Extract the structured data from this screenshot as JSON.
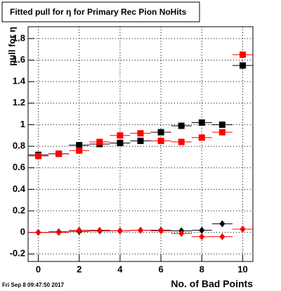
{
  "chart_data": {
    "type": "scatter",
    "title": "Fitted pull for  η for Primary Rec Pion NoHits",
    "x_label": "No. of Bad Points",
    "y_label": "pull for  η",
    "footer": "Fri Sep  8 09:47:50 2017",
    "x": [
      0,
      1,
      2,
      3,
      4,
      5,
      6,
      7,
      8,
      9,
      10
    ],
    "xlim": [
      -0.5,
      10.5
    ],
    "xticks": [
      0,
      2,
      4,
      6,
      8,
      10
    ],
    "ylim": [
      -0.27,
      1.91
    ],
    "yticks": [
      -0.2,
      0,
      0.2,
      0.4,
      0.6,
      0.8,
      1,
      1.2,
      1.4,
      1.6,
      1.8
    ],
    "grid": true,
    "series": [
      {
        "color": "#000000",
        "marker": "square",
        "values": [
          0.72,
          0.73,
          0.81,
          0.82,
          0.83,
          0.85,
          0.93,
          0.99,
          1.02,
          1.0,
          1.55
        ]
      },
      {
        "color": "#ff0000",
        "marker": "square",
        "values": [
          0.71,
          0.73,
          0.76,
          0.84,
          0.9,
          0.92,
          0.85,
          0.84,
          0.88,
          0.93,
          1.65
        ]
      },
      {
        "color": "#000000",
        "marker": "diamond",
        "values": [
          0,
          0.005,
          0.01,
          0.015,
          0.015,
          0.02,
          0.02,
          0.015,
          0.02,
          0.08,
          0.03
        ]
      },
      {
        "color": "#ff0000",
        "marker": "diamond",
        "values": [
          0,
          0,
          0.02,
          0.02,
          0.015,
          0.02,
          0.015,
          -0.01,
          -0.04,
          -0.04,
          0.03
        ]
      }
    ]
  }
}
